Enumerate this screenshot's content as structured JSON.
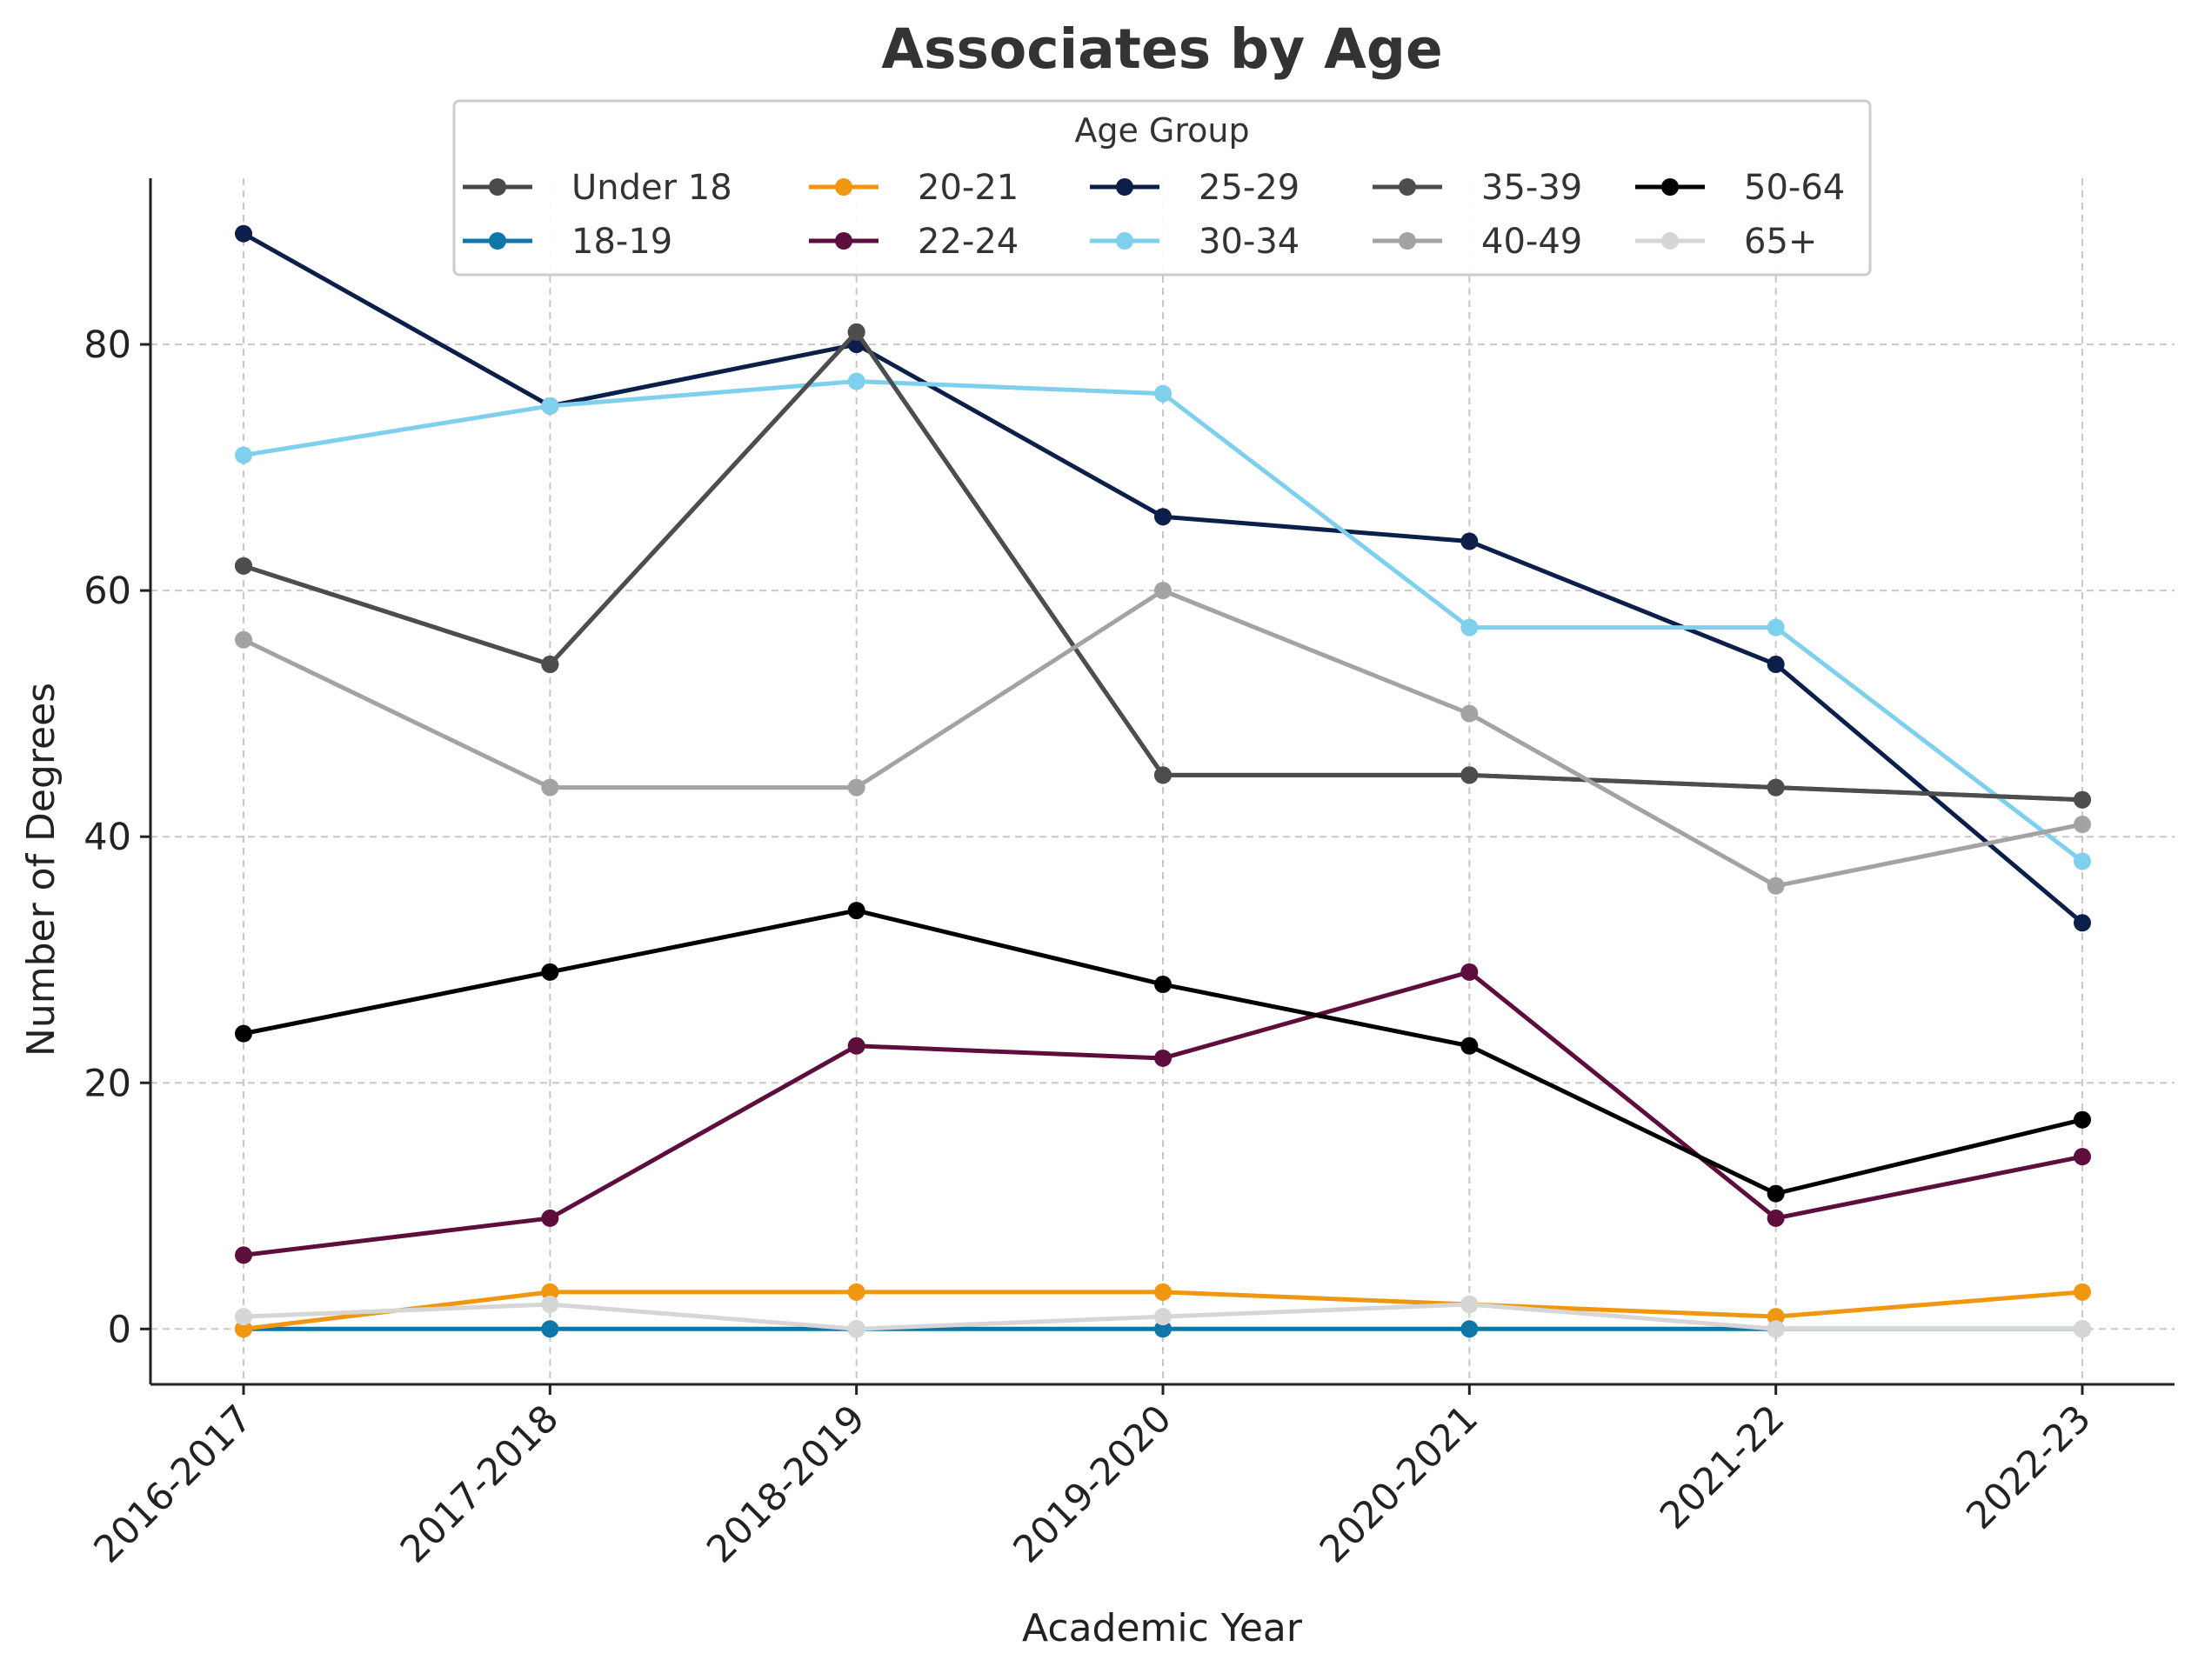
{
  "chart_data": {
    "type": "line",
    "title": "Associates by Age",
    "xlabel": "Academic Year",
    "ylabel": "Number of Degrees",
    "categories": [
      "2016-2017",
      "2017-2018",
      "2018-2019",
      "2019-2020",
      "2020-2021",
      "2021-22",
      "2022-23"
    ],
    "ylim": [
      -4.5,
      93.5
    ],
    "yticks": [
      0,
      20,
      40,
      60,
      80
    ],
    "grid": true,
    "legend": {
      "title": "Age Group",
      "placement": "top-center"
    },
    "series": [
      {
        "name": "Under 18",
        "color": "#4a4a4a",
        "values": [
          62,
          54,
          81,
          45,
          45,
          44,
          43
        ]
      },
      {
        "name": "18-19",
        "color": "#0f76a8",
        "values": [
          0,
          0,
          0,
          0,
          0,
          0,
          0
        ]
      },
      {
        "name": "20-21",
        "color": "#f0960f",
        "values": [
          0,
          3,
          3,
          3,
          2,
          1,
          3
        ]
      },
      {
        "name": "22-24",
        "color": "#5e0e3c",
        "values": [
          6,
          9,
          23,
          22,
          29,
          9,
          14
        ]
      },
      {
        "name": "25-29",
        "color": "#0b1f4a",
        "values": [
          89,
          75,
          80,
          66,
          64,
          54,
          33
        ]
      },
      {
        "name": "30-34",
        "color": "#7fd0ec",
        "values": [
          71,
          75,
          77,
          76,
          57,
          57,
          38
        ]
      },
      {
        "name": "35-39",
        "color": "#4d4d4d",
        "values": [
          62,
          54,
          81,
          45,
          45,
          44,
          43
        ]
      },
      {
        "name": "40-49",
        "color": "#a3a3a3",
        "values": [
          56,
          44,
          44,
          60,
          50,
          36,
          41
        ]
      },
      {
        "name": "50-64",
        "color": "#000000",
        "values": [
          24,
          29,
          34,
          28,
          23,
          11,
          17
        ]
      },
      {
        "name": "65+",
        "color": "#d6d6d6",
        "values": [
          1,
          2,
          0,
          1,
          2,
          0,
          0
        ]
      }
    ]
  }
}
